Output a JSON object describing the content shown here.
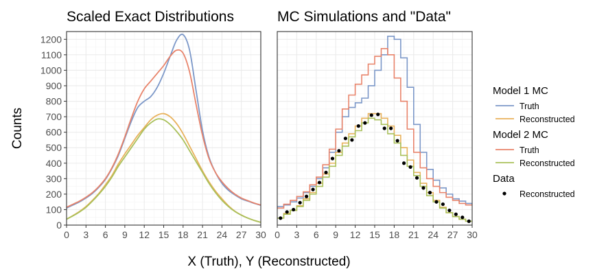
{
  "chart_data": [
    {
      "type": "line",
      "title": "Scaled Exact Distributions",
      "ylabel": "Counts",
      "xlim": [
        0,
        30
      ],
      "ylim": [
        0,
        1250
      ],
      "x_ticks": [
        0,
        3,
        6,
        9,
        12,
        15,
        18,
        21,
        24,
        27,
        30
      ],
      "y_ticks": [
        0,
        100,
        200,
        300,
        400,
        500,
        600,
        700,
        800,
        900,
        1000,
        1100,
        1200
      ],
      "grid": true,
      "series": [
        {
          "legend_group": "Model 1 MC",
          "name": "Truth",
          "color": "#7b97c8",
          "x": [
            0,
            1,
            2,
            3,
            4,
            5,
            6,
            7,
            8,
            9,
            10,
            11,
            12,
            13,
            14,
            15,
            16,
            17,
            18,
            19,
            20,
            21,
            22,
            23,
            24,
            25,
            26,
            27,
            28,
            29,
            30
          ],
          "y": [
            110,
            130,
            150,
            175,
            205,
            245,
            295,
            365,
            450,
            560,
            670,
            760,
            800,
            830,
            890,
            980,
            1090,
            1195,
            1230,
            1130,
            870,
            610,
            440,
            340,
            270,
            225,
            195,
            170,
            155,
            140,
            128
          ]
        },
        {
          "legend_group": "Model 1 MC",
          "name": "Reconstructed",
          "color": "#e8b15a",
          "x": [
            0,
            1,
            2,
            3,
            4,
            5,
            6,
            7,
            8,
            9,
            10,
            11,
            12,
            13,
            14,
            15,
            16,
            17,
            18,
            19,
            20,
            21,
            22,
            23,
            24,
            25,
            26,
            27,
            28,
            29,
            30
          ],
          "y": [
            38,
            62,
            88,
            120,
            160,
            205,
            260,
            320,
            395,
            460,
            520,
            580,
            630,
            680,
            710,
            720,
            700,
            655,
            590,
            510,
            430,
            350,
            280,
            220,
            170,
            125,
            90,
            65,
            45,
            30,
            18
          ]
        },
        {
          "legend_group": "Model 2 MC",
          "name": "Truth",
          "color": "#e8836a",
          "x": [
            0,
            1,
            2,
            3,
            4,
            5,
            6,
            7,
            8,
            9,
            10,
            11,
            12,
            13,
            14,
            15,
            16,
            17,
            18,
            19,
            20,
            21,
            22,
            23,
            24,
            25,
            26,
            27,
            28,
            29,
            30
          ],
          "y": [
            115,
            135,
            155,
            180,
            210,
            250,
            300,
            370,
            460,
            570,
            690,
            800,
            880,
            930,
            980,
            1030,
            1090,
            1130,
            1110,
            990,
            780,
            580,
            430,
            340,
            280,
            235,
            200,
            175,
            158,
            142,
            130
          ]
        },
        {
          "legend_group": "Model 2 MC",
          "name": "Reconstructed",
          "color": "#a9c05a",
          "x": [
            0,
            1,
            2,
            3,
            4,
            5,
            6,
            7,
            8,
            9,
            10,
            11,
            12,
            13,
            14,
            15,
            16,
            17,
            18,
            19,
            20,
            21,
            22,
            23,
            24,
            25,
            26,
            27,
            28,
            29,
            30
          ],
          "y": [
            38,
            60,
            85,
            115,
            155,
            200,
            250,
            310,
            380,
            440,
            500,
            560,
            620,
            660,
            685,
            680,
            650,
            605,
            550,
            480,
            410,
            340,
            270,
            210,
            160,
            120,
            88,
            64,
            45,
            30,
            18
          ]
        }
      ]
    },
    {
      "type": "line",
      "title": "MC Simulations and \"Data\"",
      "xlim": [
        0,
        30
      ],
      "ylim": [
        0,
        1250
      ],
      "x_ticks": [
        0,
        3,
        6,
        9,
        12,
        15,
        18,
        21,
        24,
        27,
        30
      ],
      "grid": true,
      "bin_edges": [
        0,
        1,
        2,
        3,
        4,
        5,
        6,
        7,
        8,
        9,
        10,
        11,
        12,
        13,
        14,
        15,
        16,
        17,
        18,
        19,
        20,
        21,
        22,
        23,
        24,
        25,
        26,
        27,
        28,
        29,
        30
      ],
      "series": [
        {
          "legend_group": "Model 1 MC",
          "name": "Truth",
          "color": "#7b97c8",
          "style": "step",
          "values": [
            120,
            130,
            150,
            175,
            210,
            250,
            300,
            370,
            470,
            600,
            700,
            760,
            790,
            820,
            900,
            1000,
            1100,
            1220,
            1200,
            1080,
            890,
            650,
            470,
            360,
            290,
            240,
            200,
            170,
            155,
            140
          ]
        },
        {
          "legend_group": "Model 1 MC",
          "name": "Reconstructed",
          "color": "#e8b15a",
          "style": "step",
          "values": [
            45,
            75,
            95,
            125,
            170,
            210,
            270,
            330,
            400,
            470,
            530,
            590,
            640,
            690,
            720,
            720,
            690,
            640,
            580,
            500,
            420,
            340,
            270,
            210,
            160,
            115,
            80,
            55,
            38,
            25
          ]
        },
        {
          "legend_group": "Model 2 MC",
          "name": "Truth",
          "color": "#e8836a",
          "style": "step",
          "values": [
            110,
            135,
            160,
            185,
            215,
            260,
            310,
            390,
            490,
            620,
            750,
            840,
            910,
            970,
            1040,
            1090,
            1140,
            1100,
            950,
            800,
            620,
            470,
            370,
            300,
            250,
            210,
            180,
            160,
            140,
            130
          ]
        },
        {
          "legend_group": "Model 2 MC",
          "name": "Reconstructed",
          "color": "#a9c05a",
          "style": "step",
          "values": [
            45,
            70,
            95,
            120,
            160,
            200,
            250,
            310,
            380,
            450,
            510,
            570,
            610,
            660,
            690,
            680,
            650,
            590,
            530,
            450,
            380,
            320,
            250,
            190,
            150,
            110,
            80,
            55,
            38,
            25
          ]
        },
        {
          "legend_group": "Data",
          "name": "Reconstructed",
          "color": "#000000",
          "style": "points",
          "x": [
            0.5,
            1.5,
            2.5,
            3.5,
            4.5,
            5.5,
            6.5,
            7.5,
            8.5,
            9.5,
            10.5,
            11.5,
            12.5,
            13.5,
            14.5,
            15.5,
            16.5,
            17.5,
            18.5,
            19.5,
            20.5,
            21.5,
            22.5,
            23.5,
            24.5,
            25.5,
            26.5,
            27.5,
            28.5,
            29.5
          ],
          "y": [
            45,
            85,
            100,
            145,
            185,
            230,
            275,
            340,
            430,
            480,
            560,
            550,
            640,
            660,
            710,
            715,
            625,
            625,
            545,
            400,
            375,
            305,
            240,
            210,
            150,
            135,
            95,
            70,
            50,
            25
          ]
        }
      ]
    }
  ],
  "shared_xlabel": "X (Truth), Y (Reconstructed)",
  "legend": {
    "placement": "right",
    "groups": [
      {
        "title": "Model 1 MC",
        "entries": [
          {
            "label": "Truth",
            "color": "#7b97c8",
            "kind": "line"
          },
          {
            "label": "Reconstructed",
            "color": "#e8b15a",
            "kind": "line"
          }
        ]
      },
      {
        "title": "Model 2 MC",
        "entries": [
          {
            "label": "Truth",
            "color": "#e8836a",
            "kind": "line"
          },
          {
            "label": "Reconstructed",
            "color": "#a9c05a",
            "kind": "line"
          }
        ]
      },
      {
        "title": "Data",
        "entries": [
          {
            "label": "Reconstructed",
            "color": "#000000",
            "kind": "point"
          }
        ]
      }
    ]
  }
}
